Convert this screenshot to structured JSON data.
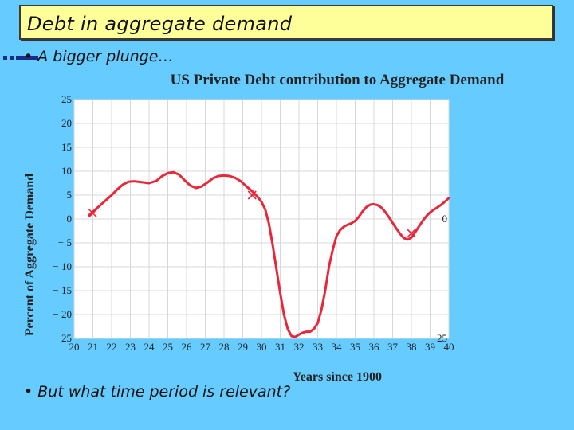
{
  "slide": {
    "title": "Debt in aggregate demand",
    "bullets": [
      "• A bigger plunge…",
      "• But what time period is relevant?"
    ]
  },
  "colors": {
    "background": "#66ccff",
    "title_box": "#ffff99",
    "line": "#e8283a",
    "plot_bg": "#ffffff"
  },
  "chart_data": {
    "type": "line",
    "title": "US Private Debt contribution to Aggregate Demand",
    "xlabel": "Years since 1900",
    "ylabel": "Percent of Aggregate Demand",
    "xlim": [
      20,
      40
    ],
    "ylim": [
      -25,
      25
    ],
    "x_ticks": [
      "20",
      "21",
      "22",
      "23",
      "24",
      "25",
      "26",
      "27",
      "28",
      "29",
      "30",
      "31",
      "32",
      "33",
      "34",
      "35",
      "36",
      "37",
      "38",
      "39",
      "40"
    ],
    "y_ticks": [
      "25",
      "20",
      "15",
      "10",
      "5",
      "0",
      "− 5",
      "− 10",
      "− 15",
      "− 20",
      "− 25"
    ],
    "right_labels": [
      {
        "text": "0",
        "y": 0
      },
      {
        "text": "− 25",
        "y": -25
      }
    ],
    "grid": true,
    "series": [
      {
        "x": [
          20.8,
          21.2,
          21.6,
          22.0,
          22.3,
          22.6,
          22.9,
          23.2,
          23.6,
          24.0,
          24.4,
          24.7,
          25.0,
          25.3,
          25.6,
          25.9,
          26.2,
          26.5,
          26.8,
          27.1,
          27.4,
          27.7,
          28.0,
          28.3,
          28.6,
          28.9,
          29.2,
          29.5,
          29.8,
          30.0,
          30.2,
          30.4,
          30.6,
          30.8,
          31.0,
          31.2,
          31.4,
          31.6,
          31.8,
          32.0,
          32.2,
          32.4,
          32.6,
          32.8,
          33.0,
          33.2,
          33.4,
          33.6,
          33.8,
          34.0,
          34.2,
          34.4,
          34.6,
          34.8,
          35.0,
          35.2,
          35.4,
          35.6,
          35.8,
          36.0,
          36.2,
          36.4,
          36.6,
          36.8,
          37.0,
          37.2,
          37.4,
          37.6,
          37.8,
          38.0,
          38.2,
          38.4,
          38.6,
          38.8,
          39.0,
          39.3,
          39.6,
          39.9,
          40.0
        ],
        "y": [
          0.8,
          2.2,
          3.6,
          5.0,
          6.2,
          7.2,
          7.8,
          7.9,
          7.7,
          7.5,
          8.0,
          9.0,
          9.6,
          9.8,
          9.3,
          8.1,
          7.0,
          6.5,
          6.8,
          7.6,
          8.5,
          9.0,
          9.1,
          9.0,
          8.6,
          7.9,
          6.8,
          5.8,
          4.6,
          3.6,
          2.0,
          -1.0,
          -5.5,
          -10.5,
          -15.5,
          -20.0,
          -23.0,
          -24.5,
          -24.7,
          -24.2,
          -23.8,
          -23.6,
          -23.6,
          -23.0,
          -21.8,
          -19.0,
          -15.0,
          -10.0,
          -6.5,
          -3.6,
          -2.3,
          -1.6,
          -1.2,
          -0.9,
          -0.4,
          0.5,
          1.6,
          2.5,
          3.0,
          3.1,
          2.9,
          2.4,
          1.5,
          0.4,
          -0.8,
          -2.0,
          -3.1,
          -4.0,
          -4.3,
          -3.9,
          -2.8,
          -1.6,
          -0.4,
          0.6,
          1.4,
          2.2,
          3.0,
          4.0,
          4.4
        ]
      }
    ],
    "markers": [
      {
        "x": 21.0,
        "y": 1.2
      },
      {
        "x": 29.5,
        "y": 5.0
      },
      {
        "x": 38.0,
        "y": -3.0
      }
    ]
  }
}
